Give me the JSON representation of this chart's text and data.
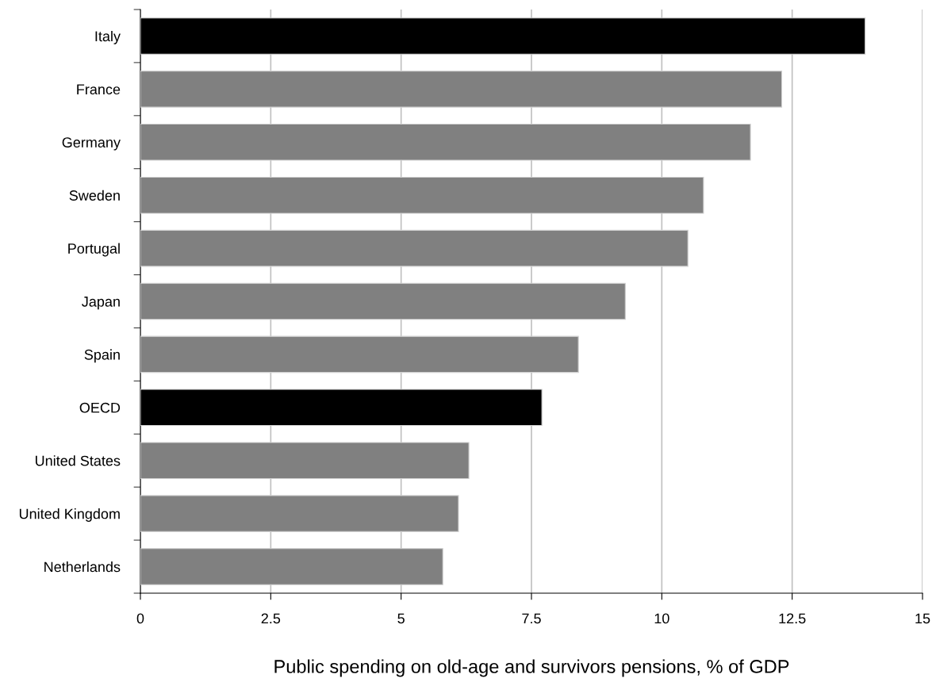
{
  "chart_data": {
    "type": "bar",
    "orientation": "horizontal",
    "xlabel": "Public spending on old-age and survivors pensions, % of GDP",
    "categories": [
      "Italy",
      "France",
      "Germany",
      "Sweden",
      "Portugal",
      "Japan",
      "Spain",
      "OECD",
      "United States",
      "United Kingdom",
      "Netherlands"
    ],
    "values": [
      13.9,
      12.3,
      11.7,
      10.8,
      10.5,
      9.3,
      8.4,
      7.7,
      6.3,
      6.1,
      5.8
    ],
    "colors": [
      "#000000",
      "#808080",
      "#808080",
      "#808080",
      "#808080",
      "#808080",
      "#808080",
      "#000000",
      "#808080",
      "#808080",
      "#808080"
    ],
    "xlim": [
      0,
      15
    ],
    "xticks": [
      0,
      2.5,
      5,
      7.5,
      10,
      12.5,
      15
    ],
    "grid": "x",
    "legend": false
  }
}
